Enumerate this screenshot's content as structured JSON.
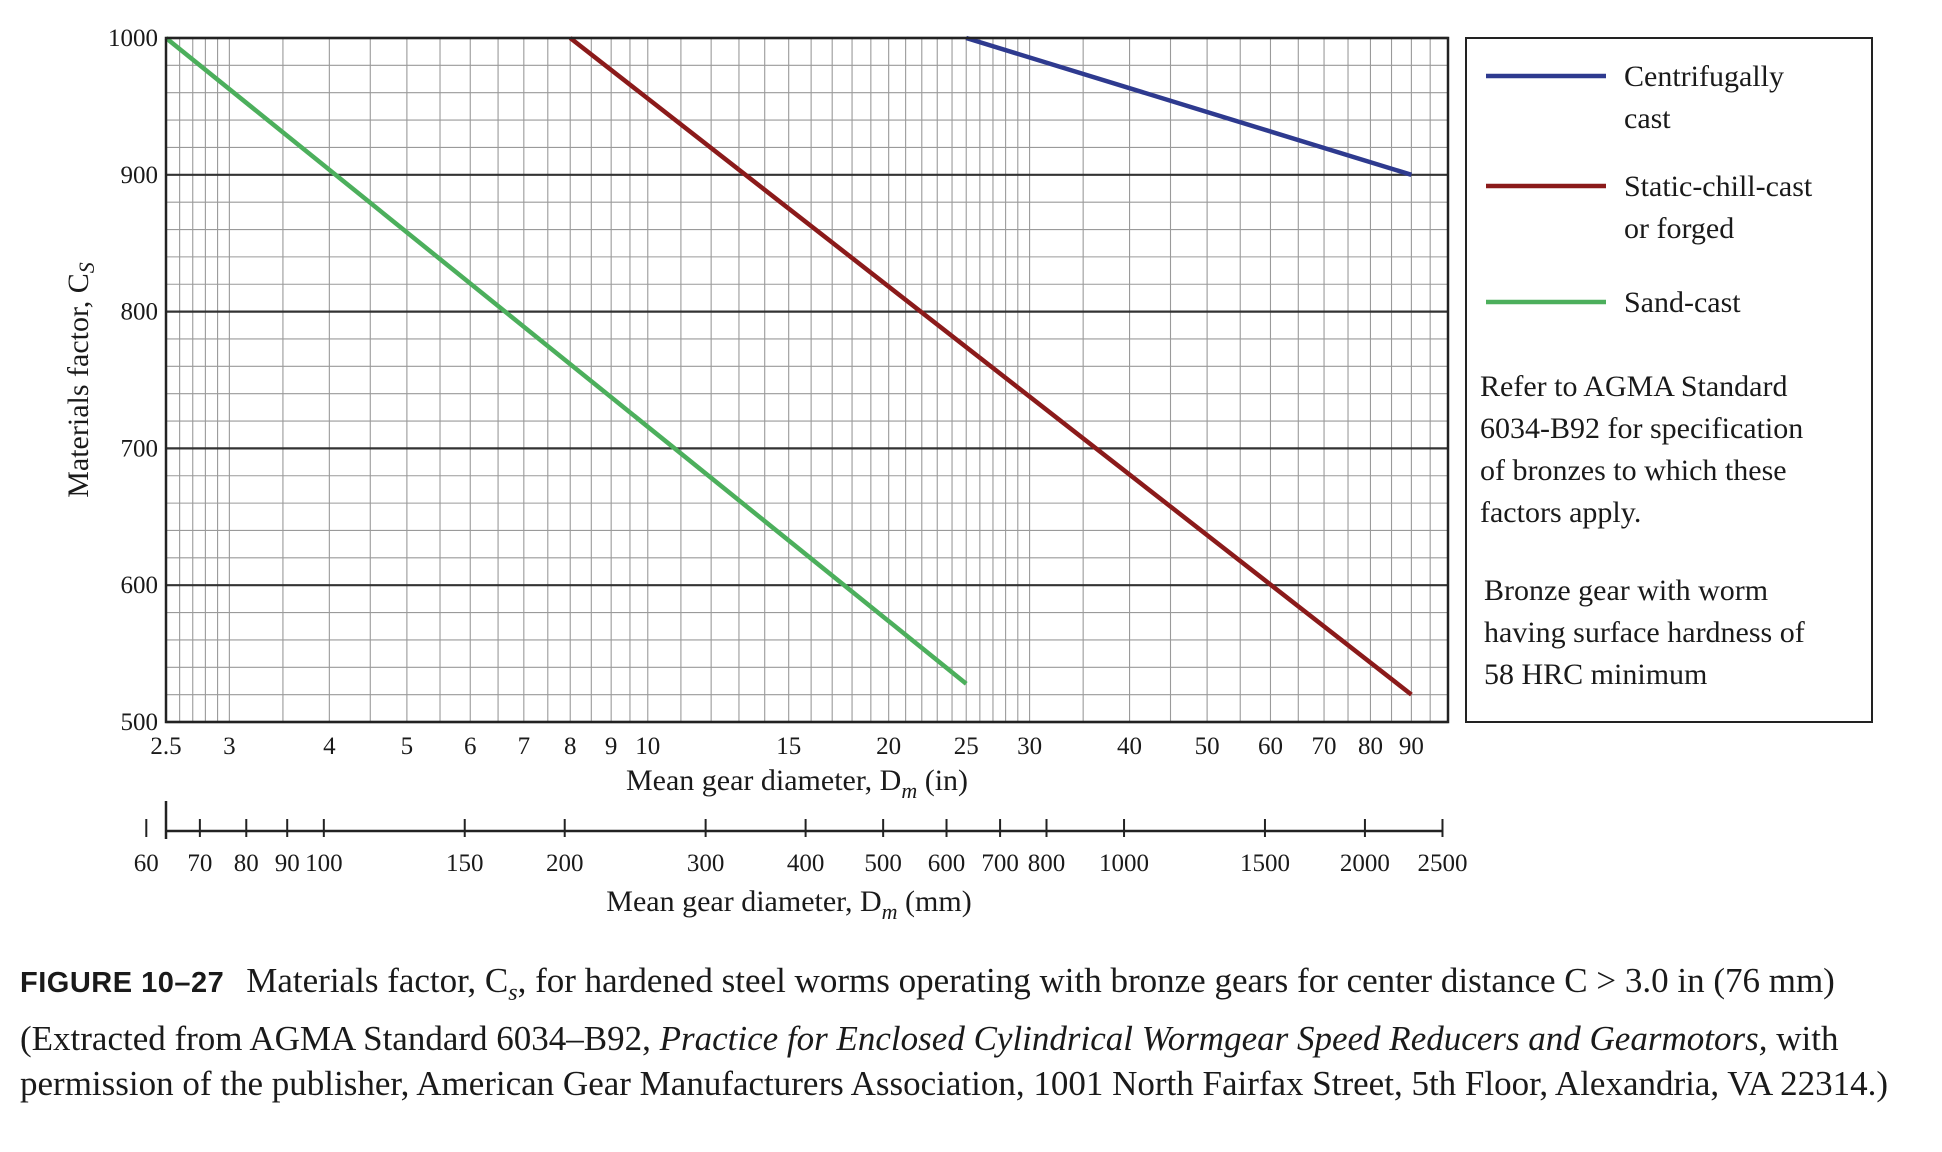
{
  "chart_data": {
    "type": "line",
    "ylabel": "Materials factor, C",
    "ylabel_sub": "S",
    "ylim": [
      500,
      1000
    ],
    "yticks": [
      "500",
      "600",
      "700",
      "800",
      "900",
      "1000"
    ],
    "x_scale": "log",
    "xlim": [
      2.5,
      100
    ],
    "xlabel": "Mean gear diameter, D",
    "xlabel_sub": "m",
    "xlabel_unit": " (in)",
    "xticks": [
      "2.5",
      "3",
      "4",
      "5",
      "6",
      "7",
      "8",
      "9",
      "10",
      "15",
      "20",
      "25",
      "30",
      "40",
      "50",
      "60",
      "70",
      "80",
      "90"
    ],
    "x2label": "Mean gear diameter, D",
    "x2label_sub": "m",
    "x2label_unit": " (mm)",
    "x2ticks": [
      "60",
      "70",
      "80",
      "90",
      "100",
      "150",
      "200",
      "300",
      "400",
      "500",
      "600",
      "700",
      "800",
      "1000",
      "1500",
      "2000",
      "2500"
    ],
    "grid": true,
    "legend_position": "right",
    "series": [
      {
        "name": "Centrifugally cast",
        "color": "#2e3a8f",
        "x": [
          25,
          90
        ],
        "y": [
          1000,
          900
        ]
      },
      {
        "name": "Static-chill-cast or forged",
        "color": "#8b1a1a",
        "x": [
          8,
          90
        ],
        "y": [
          1000,
          520
        ]
      },
      {
        "name": "Sand-cast",
        "color": "#4caf5c",
        "x": [
          2.5,
          25
        ],
        "y": [
          1000,
          528
        ]
      }
    ],
    "legend_entries": [
      {
        "lines": [
          "Centrifugally",
          "cast"
        ]
      },
      {
        "lines": [
          "Static-chill-cast",
          "or forged"
        ]
      },
      {
        "lines": [
          "Sand-cast"
        ]
      }
    ],
    "notes": [
      [
        "Refer to AGMA Standard",
        "6034-B92 for specification",
        "of bronzes to which these",
        "factors apply."
      ],
      [
        "Bronze gear with worm",
        "having surface hardness of",
        "58 HRC minimum"
      ]
    ]
  },
  "caption": {
    "label": "FIGURE 10–27",
    "text_1": "Materials factor, C",
    "sub": "s",
    "text_2": ", for hardened steel worms operating with bronze gears for center distance C > 3.0 in (76 mm) (Extracted from AGMA Standard 6034–B92, ",
    "italic": "Practice for Enclosed Cylindrical Wormgear Speed Reducers and Gearmotors,",
    "text_3": " with permission of the publisher, American Gear Manufacturers Association, 1001 North Fairfax Street, 5th Floor, Alexandria, VA 22314.)"
  }
}
